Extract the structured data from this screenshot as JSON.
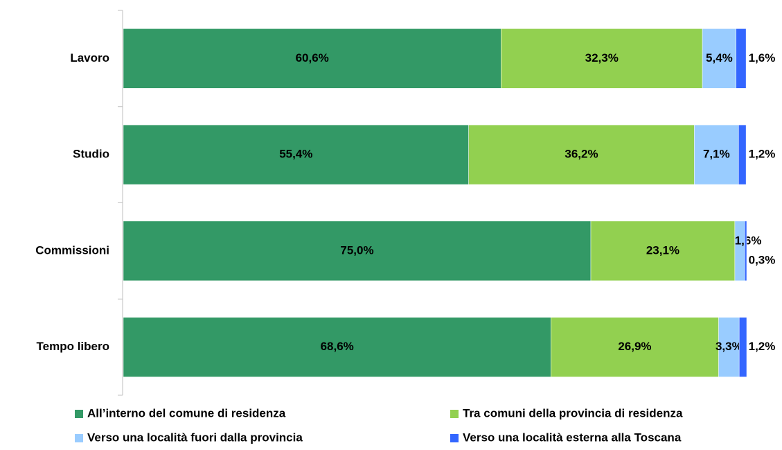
{
  "chart_data": {
    "type": "stacked-bar-horizontal",
    "categories": [
      "Lavoro",
      "Studio",
      "Commissioni",
      "Tempo libero"
    ],
    "xlim": [
      0,
      100
    ],
    "legend": "bottom",
    "series": [
      {
        "name": "All’interno del comune di residenza",
        "color": "#339966",
        "values": [
          60.6,
          55.4,
          75.0,
          68.6
        ],
        "value_labels": [
          "60,6%",
          "55,4%",
          "75,0%",
          "68,6%"
        ]
      },
      {
        "name": "Tra comuni della provincia di residenza",
        "color": "#92d050",
        "values": [
          32.3,
          36.2,
          23.1,
          26.9
        ],
        "value_labels": [
          "32,3%",
          "36,2%",
          "23,1%",
          "26,9%"
        ]
      },
      {
        "name": "Verso una località fuori dalla provincia",
        "color": "#99ccff",
        "values": [
          5.4,
          7.1,
          1.6,
          3.3
        ],
        "value_labels": [
          "5,4%",
          "7,1%",
          "1,6%",
          "3,3%"
        ]
      },
      {
        "name": "Verso una località esterna alla Toscana",
        "color": "#3366ff",
        "values": [
          1.6,
          1.2,
          0.3,
          1.2
        ],
        "value_labels": [
          "1,6%",
          "1,2%",
          "0,3%",
          "1,2%"
        ]
      }
    ]
  }
}
